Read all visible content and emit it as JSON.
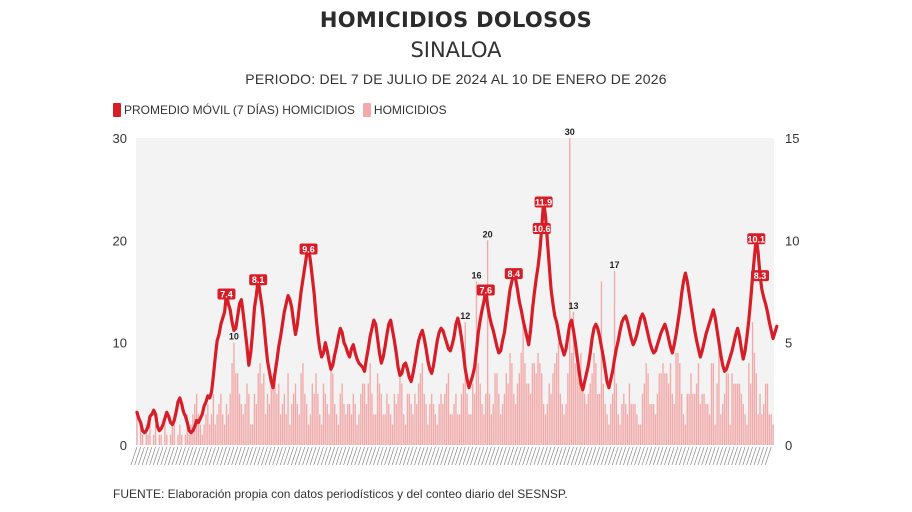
{
  "title": "HOMICIDIOS DOLOSOS",
  "subtitle": "SINALOA",
  "period": "PERIODO: DEL 7 DE JULIO DE 2024 AL 10 DE ENERO DE 2026",
  "legend": {
    "line_label": "PROMEDIO MÓVIL (7 DÍAS) HOMICIDIOS",
    "bar_label": "HOMICIDIOS"
  },
  "source": "FUENTE: Elaboración propia con datos periodísticos y del conteo diario del SESNSP.",
  "colors": {
    "line": "#d71e28",
    "bar": "#f2a9a9",
    "plot_bg": "#f3f3f3",
    "label_text": "#222222"
  },
  "chart_data": {
    "type": "bar",
    "combo": "bar + line (dual axis)",
    "x_range": [
      "2024-07-07",
      "2026-01-10"
    ],
    "left_axis": {
      "series": "HOMICIDIOS",
      "ylim": [
        0,
        30
      ],
      "ticks": [
        0,
        10,
        20,
        30
      ]
    },
    "right_axis": {
      "series": "PROMEDIO MÓVIL (7 DÍAS) HOMICIDIOS",
      "ylim": [
        0,
        15
      ],
      "ticks": [
        0,
        5,
        10,
        15
      ]
    },
    "x_tick_labels_legible": false,
    "series": [
      {
        "name": "HOMICIDIOS",
        "axis": "left",
        "values": [
          3,
          0,
          2,
          1,
          0,
          2,
          1,
          3,
          0,
          1,
          2,
          0,
          1,
          1,
          0,
          2,
          1,
          0,
          1,
          2,
          3,
          0,
          1,
          2,
          1,
          0,
          1,
          3,
          1,
          2,
          3,
          4,
          5,
          3,
          2,
          1,
          2,
          3,
          4,
          2,
          3,
          5,
          2,
          3,
          4,
          5,
          3,
          2,
          4,
          3,
          5,
          8,
          10,
          7,
          7,
          5,
          4,
          3,
          4,
          6,
          5,
          2,
          2,
          5,
          4,
          7,
          8,
          6,
          7,
          3,
          5,
          4,
          6,
          7,
          8,
          5,
          6,
          3,
          4,
          5,
          3,
          7,
          2,
          4,
          5,
          6,
          4,
          3,
          7,
          8,
          5,
          4,
          2,
          3,
          6,
          5,
          7,
          5,
          3,
          2,
          6,
          5,
          4,
          3,
          8,
          7,
          4,
          3,
          2,
          5,
          6,
          4,
          3,
          4,
          4,
          3,
          5,
          4,
          2,
          3,
          5,
          6,
          6,
          4,
          6,
          8,
          5,
          3,
          3,
          7,
          6,
          5,
          3,
          3,
          5,
          4,
          3,
          2,
          5,
          4,
          5,
          7,
          6,
          3,
          2,
          5,
          5,
          4,
          3,
          5,
          4,
          6,
          7,
          8,
          5,
          4,
          2,
          4,
          5,
          4,
          3,
          2,
          4,
          5,
          4,
          5,
          6,
          7,
          3,
          3,
          4,
          5,
          3,
          3,
          5,
          6,
          12,
          5,
          3,
          3,
          6,
          5,
          16,
          8,
          6,
          4,
          3,
          5,
          20,
          5,
          3,
          4,
          7,
          7,
          5,
          3,
          4,
          5,
          7,
          6,
          9,
          8,
          5,
          4,
          6,
          7,
          9,
          12,
          8,
          6,
          6,
          5,
          8,
          8,
          7,
          9,
          8,
          7,
          4,
          3,
          4,
          6,
          5,
          7,
          8,
          9,
          10,
          5,
          4,
          3,
          4,
          7,
          30,
          9,
          13,
          8,
          8,
          7,
          9,
          6,
          5,
          4,
          5,
          6,
          7,
          9,
          8,
          5,
          5,
          16,
          6,
          4,
          3,
          2,
          4,
          5,
          17,
          6,
          3,
          2,
          4,
          5,
          4,
          3,
          6,
          4,
          4,
          4,
          3,
          2,
          2,
          5,
          6,
          8,
          7,
          4,
          4,
          4,
          3,
          5,
          7,
          7,
          8,
          7,
          7,
          6,
          8,
          5,
          4,
          9,
          9,
          8,
          5,
          3,
          2,
          5,
          5,
          7,
          5,
          5,
          6,
          8,
          4,
          5,
          5,
          4,
          4,
          3,
          8,
          8,
          2,
          6,
          10,
          3,
          4,
          5,
          7,
          7,
          2,
          7,
          6,
          6,
          6,
          6,
          5,
          4,
          3,
          2,
          8,
          6,
          12,
          9,
          7,
          3,
          5,
          3,
          4,
          6,
          6,
          3,
          3,
          2
        ]
      },
      {
        "name": "PROMEDIO MÓVIL (7 DÍAS) HOMICIDIOS",
        "axis": "right",
        "values": [
          1.6,
          1.3,
          1.1,
          0.7,
          0.6,
          0.7,
          0.9,
          1.4,
          1.5,
          1.7,
          1.5,
          0.9,
          0.7,
          0.8,
          1.0,
          1.3,
          1.6,
          1.4,
          1.1,
          1.0,
          1.2,
          1.6,
          2.1,
          2.3,
          2.0,
          1.6,
          1.4,
          1.1,
          0.7,
          0.6,
          0.7,
          0.9,
          1.2,
          1.1,
          1.3,
          1.5,
          1.9,
          2.1,
          2.4,
          2.3,
          2.6,
          3.4,
          4.3,
          5.1,
          5.4,
          5.9,
          6.2,
          6.5,
          7.4,
          6.9,
          6.6,
          6.0,
          5.6,
          5.7,
          6.3,
          6.9,
          7.1,
          6.4,
          5.6,
          4.8,
          3.9,
          4.5,
          5.5,
          6.7,
          7.3,
          8.1,
          7.4,
          6.8,
          6.0,
          5.0,
          4.1,
          3.6,
          3.1,
          2.8,
          3.5,
          4.1,
          4.8,
          5.3,
          5.9,
          6.5,
          6.9,
          7.3,
          7.1,
          6.7,
          6.0,
          5.4,
          5.9,
          6.7,
          7.5,
          8.1,
          8.7,
          9.3,
          9.6,
          9.0,
          8.2,
          7.4,
          6.3,
          5.4,
          4.7,
          4.3,
          4.5,
          5.0,
          4.6,
          4.1,
          3.7,
          3.9,
          4.4,
          4.8,
          5.3,
          5.7,
          5.5,
          5.0,
          4.8,
          4.5,
          4.3,
          4.7,
          4.9,
          4.5,
          4.2,
          4.0,
          3.9,
          3.8,
          3.6,
          4.2,
          4.7,
          5.3,
          5.7,
          6.1,
          5.9,
          5.2,
          4.5,
          4.0,
          4.3,
          4.8,
          5.4,
          5.9,
          6.1,
          5.6,
          5.1,
          4.5,
          3.8,
          3.4,
          3.5,
          3.9,
          4.0,
          3.7,
          3.3,
          3.1,
          3.5,
          4.0,
          4.6,
          5.1,
          5.4,
          5.6,
          5.2,
          4.7,
          4.1,
          3.7,
          3.5,
          3.9,
          4.5,
          5.1,
          5.5,
          5.7,
          5.6,
          5.3,
          5.0,
          4.7,
          4.6,
          4.9,
          5.3,
          5.9,
          6.2,
          5.8,
          5.2,
          4.5,
          3.7,
          3.2,
          2.8,
          3.1,
          3.4,
          3.8,
          4.6,
          5.5,
          6.1,
          6.6,
          7.0,
          7.6,
          6.8,
          6.3,
          5.9,
          5.6,
          5.2,
          4.8,
          4.5,
          4.6,
          5.1,
          5.5,
          6.2,
          6.9,
          7.6,
          8.0,
          8.4,
          8.1,
          7.6,
          7.0,
          6.6,
          6.1,
          5.7,
          5.3,
          4.9,
          5.6,
          6.6,
          7.4,
          8.1,
          8.7,
          9.5,
          10.6,
          11.9,
          11.2,
          10.0,
          8.8,
          7.6,
          6.9,
          6.3,
          6.0,
          5.5,
          5.0,
          4.7,
          4.4,
          4.7,
          5.3,
          5.9,
          6.1,
          5.6,
          5.0,
          4.3,
          3.6,
          3.0,
          2.7,
          3.1,
          3.5,
          3.9,
          4.5,
          5.2,
          5.7,
          5.9,
          5.7,
          5.3,
          4.8,
          4.3,
          3.7,
          3.1,
          2.8,
          3.2,
          3.6,
          4.2,
          4.7,
          5.1,
          5.6,
          6.0,
          6.2,
          6.3,
          6.0,
          5.6,
          5.2,
          4.9,
          5.1,
          5.4,
          5.8,
          6.2,
          6.4,
          6.2,
          5.8,
          5.4,
          5.0,
          4.7,
          4.5,
          4.6,
          4.9,
          5.2,
          5.5,
          5.7,
          5.9,
          5.6,
          5.2,
          4.8,
          4.5,
          4.9,
          5.4,
          6.0,
          6.6,
          7.4,
          8.0,
          8.4,
          8.0,
          7.4,
          6.8,
          6.2,
          5.6,
          5.1,
          4.7,
          4.3,
          4.6,
          5.0,
          5.4,
          5.7,
          6.0,
          6.3,
          6.6,
          6.2,
          5.6,
          5.0,
          4.4,
          3.9,
          3.6,
          3.7,
          4.0,
          4.3,
          4.6,
          5.0,
          5.4,
          5.7,
          5.3,
          4.7,
          4.2,
          4.6,
          5.3,
          6.1,
          7.1,
          8.2,
          9.2,
          10.1,
          9.4,
          8.3,
          7.6,
          7.2,
          6.9,
          6.5,
          6.0,
          5.6,
          5.2,
          5.5,
          5.8
        ]
      }
    ],
    "annotated_labels": [
      {
        "series": "HOMICIDIOS",
        "value": 30
      },
      {
        "series": "HOMICIDIOS",
        "value": 20
      },
      {
        "series": "HOMICIDIOS",
        "value": 17
      },
      {
        "series": "HOMICIDIOS",
        "value": 16
      },
      {
        "series": "HOMICIDIOS",
        "value": 13
      },
      {
        "series": "HOMICIDIOS",
        "value": 12
      },
      {
        "series": "HOMICIDIOS",
        "value": 10
      },
      {
        "series": "PROMEDIO MÓVIL (7 DÍAS) HOMICIDIOS",
        "value": 11.9
      },
      {
        "series": "PROMEDIO MÓVIL (7 DÍAS) HOMICIDIOS",
        "value": 10.6
      },
      {
        "series": "PROMEDIO MÓVIL (7 DÍAS) HOMICIDIOS",
        "value": 10.1
      },
      {
        "series": "PROMEDIO MÓVIL (7 DÍAS) HOMICIDIOS",
        "value": 9.6
      },
      {
        "series": "PROMEDIO MÓVIL (7 DÍAS) HOMICIDIOS",
        "value": 8.4
      },
      {
        "series": "PROMEDIO MÓVIL (7 DÍAS) HOMICIDIOS",
        "value": 8.3
      },
      {
        "series": "PROMEDIO MÓVIL (7 DÍAS) HOMICIDIOS",
        "value": 8.1
      },
      {
        "series": "PROMEDIO MÓVIL (7 DÍAS) HOMICIDIOS",
        "value": 7.6
      },
      {
        "series": "PROMEDIO MÓVIL (7 DÍAS) HOMICIDIOS",
        "value": 7.4
      }
    ],
    "grid": false,
    "legend_position": "top-left"
  }
}
